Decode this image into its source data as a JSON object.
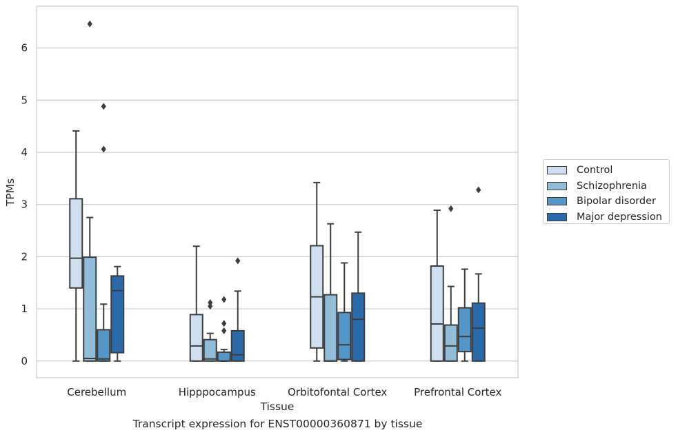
{
  "chart_data": {
    "type": "box",
    "title": "",
    "xlabel": "Tissue",
    "ylabel": "TPMs",
    "caption": "Transcript expression for ENST00000360871 by tissue",
    "categories": [
      "Cerebellum",
      "Hipppocampus",
      "Orbitofontal Cortex",
      "Prefrontal Cortex"
    ],
    "ylim": [
      -0.32,
      6.8
    ],
    "yticks": [
      0,
      1,
      2,
      3,
      4,
      5,
      6
    ],
    "grid": "horizontal",
    "legend_position": "right",
    "series": [
      {
        "name": "Control",
        "color": "#d0dff0",
        "boxes": [
          {
            "whislo": 0.0,
            "q1": 1.4,
            "med": 1.97,
            "q3": 3.11,
            "whishi": 4.41,
            "fliers": []
          },
          {
            "whislo": 0.0,
            "q1": 0.0,
            "med": 0.29,
            "q3": 0.89,
            "whishi": 2.2,
            "fliers": []
          },
          {
            "whislo": 0.0,
            "q1": 0.25,
            "med": 1.23,
            "q3": 2.21,
            "whishi": 3.42,
            "fliers": []
          },
          {
            "whislo": 0.0,
            "q1": 0.0,
            "med": 0.71,
            "q3": 1.82,
            "whishi": 2.89,
            "fliers": []
          }
        ]
      },
      {
        "name": "Schizophrenia",
        "color": "#92bdd8",
        "boxes": [
          {
            "whislo": 0.0,
            "q1": 0.0,
            "med": 0.05,
            "q3": 1.99,
            "whishi": 2.75,
            "fliers": [
              6.46
            ]
          },
          {
            "whislo": 0.0,
            "q1": 0.0,
            "med": 0.04,
            "q3": 0.41,
            "whishi": 0.53,
            "fliers": [
              1.05,
              1.12
            ]
          },
          {
            "whislo": 0.0,
            "q1": 0.0,
            "med": 0.0,
            "q3": 1.27,
            "whishi": 2.63,
            "fliers": []
          },
          {
            "whislo": 0.0,
            "q1": 0.0,
            "med": 0.29,
            "q3": 0.69,
            "whishi": 1.43,
            "fliers": [
              2.92
            ]
          }
        ]
      },
      {
        "name": "Bipolar disorder",
        "color": "#5596c9",
        "boxes": [
          {
            "whislo": 0.0,
            "q1": 0.0,
            "med": 0.04,
            "q3": 0.6,
            "whishi": 1.09,
            "fliers": [
              4.06,
              4.88
            ]
          },
          {
            "whislo": 0.0,
            "q1": 0.0,
            "med": 0.0,
            "q3": 0.17,
            "whishi": 0.22,
            "fliers": [
              0.58,
              0.72,
              1.18
            ]
          },
          {
            "whislo": 0.0,
            "q1": 0.03,
            "med": 0.31,
            "q3": 0.93,
            "whishi": 1.88,
            "fliers": []
          },
          {
            "whislo": 0.0,
            "q1": 0.18,
            "med": 0.47,
            "q3": 1.02,
            "whishi": 1.76,
            "fliers": []
          }
        ]
      },
      {
        "name": "Major depression",
        "color": "#2a6aaa",
        "boxes": [
          {
            "whislo": 0.0,
            "q1": 0.16,
            "med": 1.35,
            "q3": 1.63,
            "whishi": 1.81,
            "fliers": []
          },
          {
            "whislo": 0.0,
            "q1": 0.0,
            "med": 0.12,
            "q3": 0.58,
            "whishi": 1.34,
            "fliers": [
              1.92
            ]
          },
          {
            "whislo": 0.0,
            "q1": 0.0,
            "med": 0.8,
            "q3": 1.3,
            "whishi": 2.47,
            "fliers": []
          },
          {
            "whislo": 0.0,
            "q1": 0.0,
            "med": 0.63,
            "q3": 1.11,
            "whishi": 1.67,
            "fliers": [
              3.28
            ]
          }
        ]
      }
    ]
  }
}
